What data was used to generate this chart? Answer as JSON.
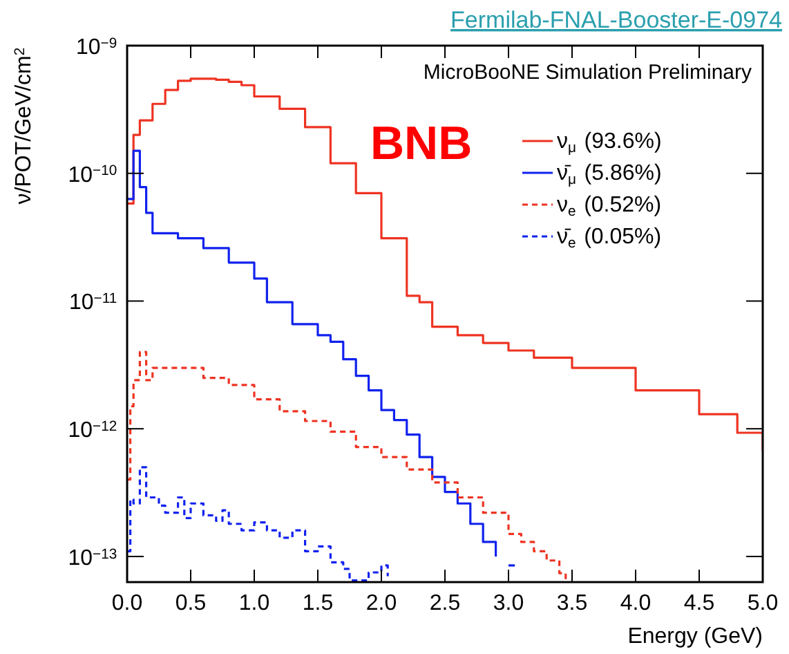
{
  "chart_data": {
    "type": "step",
    "title": "Fermilab-FNAL-Booster-E-0974",
    "xlabel": "Energy (GeV)",
    "ylabel": "ν/POT/GeV/cm$^{2}$",
    "annotations": [
      "MicroBooNE Simulation Preliminary",
      "BNB"
    ],
    "log": "y",
    "grid": false,
    "legend": "top right",
    "xlim": [
      0,
      5
    ],
    "xticks": [
      {
        "value": 0,
        "label": "0.0"
      },
      0.5,
      {
        "value": 1,
        "label": "1.0"
      },
      1.5,
      {
        "value": 2,
        "label": "2.0"
      },
      2.5,
      {
        "value": 3,
        "label": "3.0"
      },
      3.5,
      {
        "value": 4,
        "label": "4.0"
      },
      4.5,
      {
        "value": 5,
        "label": "5.0"
      }
    ],
    "ylim": [
      6.3e-14,
      1e-09
    ],
    "yticks": [
      {
        "value": 1e-13,
        "label": "10$^{−13}$"
      },
      {
        "value": 1e-12,
        "label": "10$^{−12}$"
      },
      {
        "value": 1e-11,
        "label": "10$^{−11}$"
      },
      {
        "value": 1e-10,
        "label": "10$^{−10}$"
      },
      {
        "value": 1e-09,
        "label": "10$^{−9}$"
      }
    ],
    "series": [
      {
        "name": "ν$_{μ}$ (93.6%)",
        "color": "#ee3322",
        "line_style": "solid",
        "x": [
          0,
          0.05,
          0.1,
          0.2,
          0.3,
          0.4,
          0.5,
          0.6,
          0.7,
          0.8,
          0.9,
          1.0,
          1.2,
          1.4,
          1.6,
          1.8,
          2.0,
          2.2,
          2.3,
          2.4,
          2.6,
          2.8,
          3.0,
          3.2,
          3.5,
          4.0,
          4.5,
          4.8,
          5.0
        ],
        "values": [
          5.8e-11,
          2e-10,
          2.6e-10,
          3.5e-10,
          4.5e-10,
          5.3e-10,
          5.5e-10,
          5.5e-10,
          5.4e-10,
          5.2e-10,
          4.9e-10,
          4e-10,
          3.2e-10,
          2.3e-10,
          1.2e-10,
          7e-11,
          3.1e-11,
          1.1e-11,
          9.8e-12,
          6.3e-12,
          5.4e-12,
          4.7e-12,
          4.1e-12,
          3.6e-12,
          3e-12,
          2e-12,
          1.3e-12,
          9.3e-13,
          6.8e-13
        ]
      },
      {
        "name": "ν̄$_{μ}$ (5.86%)",
        "color": "#1122ee",
        "line_style": "solid",
        "x": [
          0,
          0.05,
          0.1,
          0.15,
          0.2,
          0.4,
          0.6,
          0.8,
          1.0,
          1.1,
          1.3,
          1.5,
          1.6,
          1.7,
          1.8,
          1.9,
          2.0,
          2.1,
          2.2,
          2.3,
          2.4,
          2.5,
          2.6,
          2.7,
          2.8,
          2.9,
          2.95,
          3.0,
          3.05
        ],
        "values": [
          6.3e-11,
          1.5e-10,
          7.8e-11,
          4.9e-11,
          3.4e-11,
          3.1e-11,
          2.6e-11,
          2e-11,
          1.5e-11,
          9.8e-12,
          6.6e-12,
          5.4e-12,
          4.8e-12,
          3.5e-12,
          2.6e-12,
          2e-12,
          1.4e-12,
          1.17e-12,
          9e-13,
          6e-13,
          4.2e-13,
          3.2e-13,
          2.6e-13,
          1.8e-13,
          1.3e-13,
          1e-13,
          null,
          8.5e-14,
          8.5e-14
        ]
      },
      {
        "name": "ν$_{e}$ (0.52%)",
        "color": "#ee3322",
        "line_style": "dashed",
        "x": [
          0,
          0.025,
          0.05,
          0.1,
          0.15,
          0.2,
          0.6,
          0.8,
          1.0,
          1.2,
          1.4,
          1.6,
          1.8,
          2.0,
          2.2,
          2.4,
          2.6,
          2.8,
          3.0,
          3.1,
          3.2,
          3.3,
          3.4,
          3.45
        ],
        "values": [
          4e-13,
          1.5e-12,
          2.4e-12,
          4e-12,
          2.4e-12,
          3e-12,
          2.5e-12,
          2.2e-12,
          1.7e-12,
          1.37e-12,
          1.15e-12,
          9.5e-13,
          7.2e-13,
          6e-13,
          4.8e-13,
          3.8e-13,
          2.9e-13,
          2.2e-13,
          1.5e-13,
          1.3e-13,
          1.1e-13,
          9.3e-14,
          7.4e-14,
          6.5e-14
        ]
      },
      {
        "name": "ν̄$_{e}$ (0.05%)",
        "color": "#1122ee",
        "line_style": "dashed",
        "x": [
          0,
          0.025,
          0.05,
          0.1,
          0.15,
          0.25,
          0.3,
          0.4,
          0.45,
          0.5,
          0.6,
          0.7,
          0.75,
          0.8,
          0.9,
          1.0,
          1.1,
          1.2,
          1.3,
          1.4,
          1.5,
          1.6,
          1.7,
          1.75,
          1.9,
          2.0,
          2.05
        ],
        "values": [
          1.1e-13,
          2.8e-13,
          2.6e-13,
          5e-13,
          2.9e-13,
          2.5e-13,
          2.2e-13,
          2.9e-13,
          2e-13,
          2.6e-13,
          2.1e-13,
          1.9e-13,
          2.3e-13,
          1.8e-13,
          1.6e-13,
          1.85e-13,
          1.6e-13,
          1.4e-13,
          1.6e-13,
          1.1e-13,
          1.2e-13,
          9e-14,
          8e-14,
          6.5e-14,
          7.5e-14,
          8.5e-14,
          7e-14
        ]
      }
    ]
  }
}
